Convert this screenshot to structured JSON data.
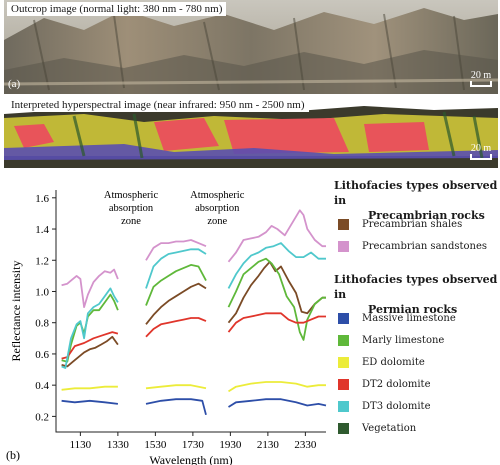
{
  "photo_panels": [
    {
      "label": "Outcrop image (normal light: 380 nm - 780 nm)",
      "letter": "(a)",
      "scale": "20 m"
    },
    {
      "label": "Interpreted hyperspectral image (near infrared: 950 nm - 2500 nm)",
      "scale": "20 m"
    }
  ],
  "colors": {
    "photo_sky": "#b8b6ae",
    "photo_rock": "#8e8878",
    "hyper_base": "#3b3a2c",
    "hyper_yellow": "#d8cf3a",
    "hyper_red": "#e8545a",
    "hyper_purple": "#5a4fb0"
  },
  "chart_data": {
    "type": "line",
    "panel_letter": "(b)",
    "xlabel": "Wavelength (nm)",
    "ylabel": "Reflectance intensity",
    "xlim": [
      1000,
      2440
    ],
    "ylim": [
      0.1,
      1.65
    ],
    "x_ticks": [
      1130,
      1330,
      1530,
      1730,
      1930,
      2130,
      2330
    ],
    "y_ticks": [
      0.2,
      0.4,
      0.6,
      0.8,
      1.0,
      1.2,
      1.4,
      1.6
    ],
    "annotations": [
      {
        "text": [
          "Atmospheric",
          "absorption",
          "zone"
        ],
        "x": 1400
      },
      {
        "text": [
          "Atmospheric",
          "absorption",
          "zone"
        ],
        "x": 1860
      }
    ],
    "segments": [
      [
        1030,
        1330
      ],
      [
        1480,
        1800
      ],
      [
        1920,
        2440
      ]
    ],
    "series": [
      {
        "name": "Precambrian shales",
        "color": "#7b4b26",
        "points": [
          [
            1030,
            0.53
          ],
          [
            1060,
            0.52
          ],
          [
            1090,
            0.55
          ],
          [
            1120,
            0.58
          ],
          [
            1150,
            0.61
          ],
          [
            1180,
            0.63
          ],
          [
            1210,
            0.64
          ],
          [
            1240,
            0.66
          ],
          [
            1270,
            0.68
          ],
          [
            1300,
            0.71
          ],
          [
            1330,
            0.66
          ],
          [
            1480,
            0.79
          ],
          [
            1520,
            0.85
          ],
          [
            1560,
            0.9
          ],
          [
            1600,
            0.94
          ],
          [
            1640,
            0.97
          ],
          [
            1680,
            1.0
          ],
          [
            1720,
            1.03
          ],
          [
            1760,
            1.05
          ],
          [
            1800,
            1.02
          ],
          [
            1920,
            0.8
          ],
          [
            1960,
            0.86
          ],
          [
            2000,
            0.96
          ],
          [
            2040,
            1.04
          ],
          [
            2080,
            1.1
          ],
          [
            2110,
            1.15
          ],
          [
            2140,
            1.19
          ],
          [
            2170,
            1.13
          ],
          [
            2200,
            1.16
          ],
          [
            2240,
            1.07
          ],
          [
            2280,
            0.99
          ],
          [
            2310,
            0.87
          ],
          [
            2340,
            0.86
          ],
          [
            2380,
            0.92
          ],
          [
            2420,
            0.96
          ],
          [
            2440,
            0.96
          ]
        ]
      },
      {
        "name": "Precambrian sandstones",
        "color": "#d493cc",
        "points": [
          [
            1030,
            1.04
          ],
          [
            1060,
            1.05
          ],
          [
            1080,
            1.07
          ],
          [
            1110,
            1.1
          ],
          [
            1130,
            1.08
          ],
          [
            1150,
            0.9
          ],
          [
            1170,
            0.98
          ],
          [
            1200,
            1.06
          ],
          [
            1230,
            1.1
          ],
          [
            1260,
            1.13
          ],
          [
            1290,
            1.12
          ],
          [
            1310,
            1.14
          ],
          [
            1330,
            1.08
          ],
          [
            1480,
            1.2
          ],
          [
            1520,
            1.28
          ],
          [
            1560,
            1.31
          ],
          [
            1600,
            1.31
          ],
          [
            1640,
            1.32
          ],
          [
            1680,
            1.32
          ],
          [
            1720,
            1.33
          ],
          [
            1760,
            1.31
          ],
          [
            1800,
            1.29
          ],
          [
            1920,
            1.19
          ],
          [
            1960,
            1.25
          ],
          [
            2000,
            1.33
          ],
          [
            2040,
            1.34
          ],
          [
            2080,
            1.35
          ],
          [
            2120,
            1.38
          ],
          [
            2150,
            1.42
          ],
          [
            2180,
            1.4
          ],
          [
            2220,
            1.36
          ],
          [
            2260,
            1.44
          ],
          [
            2300,
            1.52
          ],
          [
            2320,
            1.49
          ],
          [
            2340,
            1.4
          ],
          [
            2380,
            1.33
          ],
          [
            2420,
            1.29
          ],
          [
            2440,
            1.29
          ]
        ]
      },
      {
        "name": "Massive limestone",
        "color": "#2d4ea8",
        "points": [
          [
            1030,
            0.3
          ],
          [
            1100,
            0.29
          ],
          [
            1180,
            0.3
          ],
          [
            1260,
            0.29
          ],
          [
            1330,
            0.28
          ],
          [
            1480,
            0.28
          ],
          [
            1560,
            0.3
          ],
          [
            1640,
            0.31
          ],
          [
            1720,
            0.31
          ],
          [
            1780,
            0.3
          ],
          [
            1800,
            0.21
          ],
          [
            1920,
            0.26
          ],
          [
            1960,
            0.29
          ],
          [
            2040,
            0.3
          ],
          [
            2120,
            0.31
          ],
          [
            2200,
            0.31
          ],
          [
            2280,
            0.29
          ],
          [
            2340,
            0.27
          ],
          [
            2400,
            0.28
          ],
          [
            2440,
            0.27
          ]
        ]
      },
      {
        "name": "Marly limestone",
        "color": "#5fb83a",
        "points": [
          [
            1030,
            0.56
          ],
          [
            1060,
            0.55
          ],
          [
            1080,
            0.66
          ],
          [
            1110,
            0.78
          ],
          [
            1130,
            0.8
          ],
          [
            1150,
            0.73
          ],
          [
            1170,
            0.84
          ],
          [
            1200,
            0.88
          ],
          [
            1230,
            0.88
          ],
          [
            1260,
            0.93
          ],
          [
            1290,
            0.98
          ],
          [
            1310,
            0.94
          ],
          [
            1330,
            0.88
          ],
          [
            1480,
            0.91
          ],
          [
            1520,
            1.03
          ],
          [
            1560,
            1.07
          ],
          [
            1600,
            1.1
          ],
          [
            1640,
            1.13
          ],
          [
            1680,
            1.15
          ],
          [
            1720,
            1.17
          ],
          [
            1760,
            1.16
          ],
          [
            1800,
            1.07
          ],
          [
            1920,
            0.9
          ],
          [
            1960,
            1.0
          ],
          [
            2000,
            1.11
          ],
          [
            2040,
            1.15
          ],
          [
            2080,
            1.19
          ],
          [
            2120,
            1.21
          ],
          [
            2150,
            1.18
          ],
          [
            2190,
            1.11
          ],
          [
            2230,
            0.97
          ],
          [
            2270,
            0.9
          ],
          [
            2300,
            0.74
          ],
          [
            2320,
            0.69
          ],
          [
            2340,
            0.82
          ],
          [
            2380,
            0.92
          ],
          [
            2420,
            0.96
          ],
          [
            2440,
            0.96
          ]
        ]
      },
      {
        "name": "ED dolomite",
        "color": "#ecec3a",
        "points": [
          [
            1030,
            0.37
          ],
          [
            1100,
            0.38
          ],
          [
            1180,
            0.38
          ],
          [
            1260,
            0.39
          ],
          [
            1330,
            0.39
          ],
          [
            1480,
            0.38
          ],
          [
            1560,
            0.39
          ],
          [
            1640,
            0.4
          ],
          [
            1720,
            0.4
          ],
          [
            1800,
            0.38
          ],
          [
            1920,
            0.36
          ],
          [
            1960,
            0.39
          ],
          [
            2040,
            0.41
          ],
          [
            2120,
            0.42
          ],
          [
            2200,
            0.42
          ],
          [
            2280,
            0.41
          ],
          [
            2340,
            0.39
          ],
          [
            2400,
            0.4
          ],
          [
            2440,
            0.4
          ]
        ]
      },
      {
        "name": "DT2 dolomite",
        "color": "#e0352b",
        "points": [
          [
            1030,
            0.57
          ],
          [
            1060,
            0.58
          ],
          [
            1100,
            0.65
          ],
          [
            1150,
            0.67
          ],
          [
            1200,
            0.7
          ],
          [
            1250,
            0.72
          ],
          [
            1300,
            0.74
          ],
          [
            1330,
            0.73
          ],
          [
            1480,
            0.71
          ],
          [
            1520,
            0.76
          ],
          [
            1560,
            0.79
          ],
          [
            1600,
            0.8
          ],
          [
            1640,
            0.81
          ],
          [
            1680,
            0.82
          ],
          [
            1720,
            0.83
          ],
          [
            1760,
            0.83
          ],
          [
            1800,
            0.81
          ],
          [
            1920,
            0.74
          ],
          [
            1960,
            0.8
          ],
          [
            2000,
            0.83
          ],
          [
            2040,
            0.84
          ],
          [
            2080,
            0.85
          ],
          [
            2120,
            0.86
          ],
          [
            2160,
            0.86
          ],
          [
            2200,
            0.86
          ],
          [
            2240,
            0.82
          ],
          [
            2280,
            0.8
          ],
          [
            2320,
            0.8
          ],
          [
            2360,
            0.82
          ],
          [
            2400,
            0.84
          ],
          [
            2440,
            0.84
          ]
        ]
      },
      {
        "name": "DT3 dolomite",
        "color": "#4fc8cc",
        "points": [
          [
            1030,
            0.52
          ],
          [
            1050,
            0.51
          ],
          [
            1080,
            0.7
          ],
          [
            1110,
            0.79
          ],
          [
            1130,
            0.81
          ],
          [
            1150,
            0.7
          ],
          [
            1170,
            0.86
          ],
          [
            1200,
            0.9
          ],
          [
            1230,
            0.92
          ],
          [
            1260,
            0.97
          ],
          [
            1290,
            1.02
          ],
          [
            1310,
            0.97
          ],
          [
            1330,
            0.93
          ],
          [
            1480,
            1.02
          ],
          [
            1520,
            1.16
          ],
          [
            1560,
            1.21
          ],
          [
            1600,
            1.24
          ],
          [
            1640,
            1.25
          ],
          [
            1680,
            1.26
          ],
          [
            1720,
            1.27
          ],
          [
            1760,
            1.27
          ],
          [
            1800,
            1.24
          ],
          [
            1920,
            1.02
          ],
          [
            1960,
            1.11
          ],
          [
            2000,
            1.18
          ],
          [
            2040,
            1.23
          ],
          [
            2080,
            1.25
          ],
          [
            2120,
            1.28
          ],
          [
            2160,
            1.29
          ],
          [
            2200,
            1.31
          ],
          [
            2240,
            1.26
          ],
          [
            2280,
            1.22
          ],
          [
            2320,
            1.22
          ],
          [
            2360,
            1.25
          ],
          [
            2400,
            1.21
          ],
          [
            2440,
            1.21
          ]
        ]
      },
      {
        "name": "Vegetation",
        "color": "#2f5a2f",
        "points": []
      }
    ],
    "legend": {
      "placement": "right",
      "groups": [
        {
          "heading": [
            "Lithofacies types observed in",
            "Precambrian rocks"
          ],
          "items": [
            "Precambrian shales",
            "Precambrian sandstones"
          ]
        },
        {
          "heading": [
            "Lithofacies types observed in",
            "Permian rocks"
          ],
          "items": [
            "Massive limestone",
            "Marly limestone",
            "ED dolomite",
            "DT2 dolomite",
            "DT3 dolomite",
            "Vegetation"
          ]
        }
      ]
    }
  }
}
